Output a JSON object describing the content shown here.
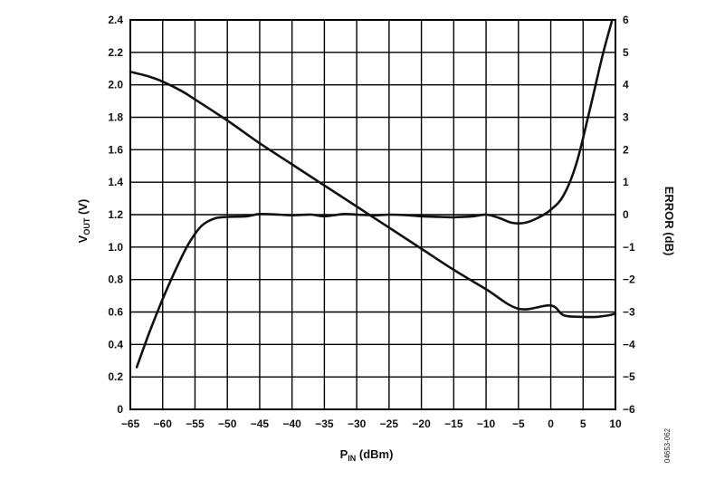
{
  "chart_data": {
    "type": "line",
    "title": "",
    "xlabel": {
      "main": "P",
      "sub": "IN",
      "unit": " (dBm)"
    },
    "ylabel_left": {
      "main": "V",
      "sub": "OUT",
      "unit": " (V)"
    },
    "ylabel_right": "ERROR (dB)",
    "xlim": [
      -65,
      10
    ],
    "ylim_left": [
      0,
      2.4
    ],
    "ylim_right": [
      -6,
      6
    ],
    "x_ticks": [
      -65,
      -60,
      -55,
      -50,
      -45,
      -40,
      -35,
      -30,
      -25,
      -20,
      -15,
      -10,
      -5,
      0,
      5,
      10
    ],
    "x_tick_labels": [
      "−65",
      "−60",
      "−55",
      "−50",
      "−45",
      "−40",
      "−35",
      "−30",
      "−25",
      "−20",
      "−15",
      "−10",
      "−5",
      "0",
      "5",
      "10"
    ],
    "y_left_ticks": [
      0,
      0.2,
      0.4,
      0.6,
      0.8,
      1.0,
      1.2,
      1.4,
      1.6,
      1.8,
      2.0,
      2.2,
      2.4
    ],
    "y_left_tick_labels": [
      "0",
      "0.2",
      "0.4",
      "0.6",
      "0.8",
      "1.0",
      "1.2",
      "1.4",
      "1.6",
      "1.8",
      "2.0",
      "2.2",
      "2.4"
    ],
    "y_right_ticks": [
      -6,
      -5,
      -4,
      -3,
      -2,
      -1,
      0,
      1,
      2,
      3,
      4,
      5,
      6
    ],
    "y_right_tick_labels": [
      "−6",
      "−5",
      "−4",
      "−3",
      "−2",
      "−1",
      "0",
      "1",
      "2",
      "3",
      "4",
      "5",
      "6"
    ],
    "grid": true,
    "series": [
      {
        "axis": "left",
        "color": "#111111",
        "x": [
          -65,
          -62,
          -60,
          -57,
          -55,
          -50,
          -45,
          -40,
          -35,
          -30,
          -25,
          -20,
          -15,
          -10,
          -5,
          0,
          2,
          5,
          7,
          9,
          10
        ],
        "y": [
          2.08,
          2.05,
          2.02,
          1.96,
          1.91,
          1.78,
          1.64,
          1.51,
          1.38,
          1.25,
          1.12,
          0.99,
          0.86,
          0.74,
          0.62,
          0.64,
          0.58,
          0.57,
          0.57,
          0.58,
          0.59
        ]
      },
      {
        "axis": "right",
        "color": "#111111",
        "x": [
          -64,
          -62,
          -60,
          -58,
          -56,
          -54,
          -52,
          -50,
          -47,
          -45,
          -42,
          -40,
          -37,
          -35,
          -32,
          -30,
          -27,
          -25,
          -22,
          -20,
          -17,
          -15,
          -12,
          -10,
          -8,
          -6,
          -4,
          -2,
          0,
          2,
          4,
          6,
          8,
          9.5
        ],
        "y": [
          -4.7,
          -3.6,
          -2.6,
          -1.7,
          -0.9,
          -0.35,
          -0.12,
          -0.07,
          -0.05,
          0.02,
          0.0,
          -0.02,
          0.0,
          -0.05,
          0.02,
          0.0,
          -0.02,
          0.0,
          -0.02,
          -0.05,
          -0.07,
          -0.08,
          -0.05,
          0.0,
          -0.1,
          -0.25,
          -0.25,
          -0.1,
          0.15,
          0.6,
          1.6,
          3.2,
          4.9,
          6.0
        ]
      }
    ],
    "annotations": [
      "04653-062"
    ]
  }
}
